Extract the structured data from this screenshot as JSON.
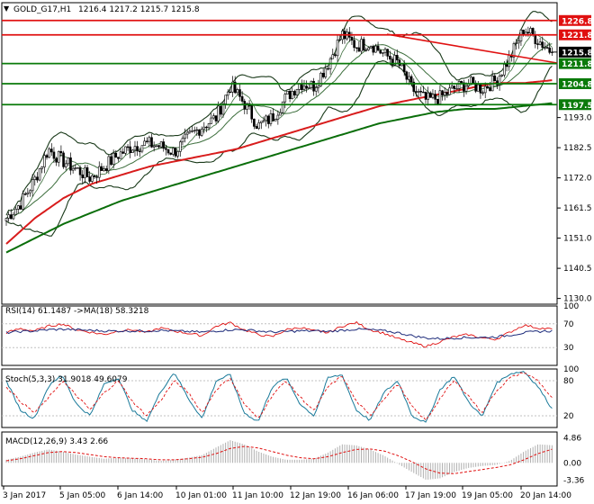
{
  "colors": {
    "background": "#ffffff",
    "frame": "#000000",
    "candle": "#000000",
    "bollinger": "#1a3a1a",
    "ma_fast": "#3c6e3c",
    "ma_red": "#d81c1c",
    "ma_green": "#0a6e0a",
    "resistance": "#e01010",
    "support": "#0a7a0a",
    "rsi_line": "#e01010",
    "rsi_ma": "#1c2a7a",
    "stoch_main": "#1a7a9a",
    "stoch_signal": "#e01010",
    "macd_hist": "#b0b0b0",
    "macd_signal": "#e01010",
    "tag_red": "#e01010",
    "tag_green": "#0a7a0a",
    "tag_black": "#000000"
  },
  "header": {
    "symbol_label": "GOLD_G17,H1",
    "ohlc_label": "1216.4 1217.2 1215.7 1215.8"
  },
  "chart_data": [
    {
      "type": "candlestick",
      "title": "GOLD_G17,H1",
      "ylim": [
        1128,
        1233
      ],
      "y_ticks": [
        1130.0,
        1140.5,
        1151.0,
        1161.5,
        1172.0,
        1182.5,
        1193.0
      ],
      "x_tick_labels": [
        "3 Jan 2017",
        "5 Jan 05:00",
        "6 Jan 14:00",
        "10 Jan 01:00",
        "11 Jan 10:00",
        "12 Jan 19:00",
        "16 Jan 06:00",
        "17 Jan 19:00",
        "19 Jan 05:00",
        "20 Jan 14:00"
      ],
      "close_path": [
        1158,
        1163,
        1171,
        1182,
        1178,
        1175,
        1172,
        1176,
        1180,
        1183,
        1184,
        1183,
        1181,
        1186,
        1190,
        1193,
        1204,
        1198,
        1190,
        1193,
        1200,
        1205,
        1204,
        1212,
        1222,
        1218,
        1219,
        1215,
        1212,
        1203,
        1199,
        1200,
        1203,
        1205,
        1203,
        1206,
        1214,
        1224,
        1220,
        1215.8
      ],
      "horizontal_levels": [
        {
          "price": 1226.8,
          "label": "1226.8",
          "kind": "resistance"
        },
        {
          "price": 1221.8,
          "label": "1221.8",
          "kind": "resistance"
        },
        {
          "price": 1211.8,
          "label": "1211.8",
          "kind": "support"
        },
        {
          "price": 1204.8,
          "label": "1204.8",
          "kind": "support"
        },
        {
          "price": 1197.5,
          "label": "1197.5",
          "kind": "support"
        }
      ],
      "current_price": {
        "value": 1215.8,
        "label": "1215.8"
      },
      "trendline": {
        "start": 1222.0,
        "end": 1212.0
      },
      "ma_slow": [
        1149,
        1158,
        1165,
        1170,
        1173,
        1176,
        1178,
        1180,
        1182,
        1185,
        1188,
        1191,
        1194,
        1197,
        1199,
        1201,
        1203,
        1205,
        1205,
        1206
      ],
      "ma_long": [
        1146,
        1151,
        1156,
        1160,
        1164,
        1167,
        1170,
        1173,
        1176,
        1179,
        1182,
        1185,
        1188,
        1191,
        1193,
        1195,
        1196,
        1196,
        1197,
        1198
      ]
    },
    {
      "type": "line",
      "title": "RSI(14) 61.1487 ->MA(18) 58.3218",
      "ylim": [
        0,
        100
      ],
      "y_ticks": [
        30,
        70,
        100
      ],
      "series": [
        {
          "name": "RSI(14)",
          "values": [
            55,
            62,
            58,
            66,
            70,
            60,
            56,
            52,
            58,
            60,
            55,
            63,
            58,
            54,
            50,
            66,
            72,
            60,
            52,
            48,
            60,
            64,
            58,
            55,
            66,
            72,
            60,
            54,
            45,
            38,
            32,
            40,
            48,
            52,
            46,
            44,
            56,
            68,
            63,
            61
          ]
        },
        {
          "name": "MA(18)",
          "values": [
            55,
            57,
            58,
            60,
            61,
            60,
            59,
            58,
            58,
            58,
            58,
            59,
            58,
            57,
            56,
            58,
            60,
            60,
            58,
            56,
            57,
            58,
            58,
            57,
            59,
            61,
            60,
            58,
            55,
            50,
            46,
            45,
            46,
            47,
            47,
            48,
            51,
            55,
            57,
            58
          ]
        }
      ]
    },
    {
      "type": "line",
      "title": "Stoch(5,3,3) 31.9018 49.6079",
      "ylim": [
        0,
        100
      ],
      "y_ticks": [
        20,
        80,
        100
      ],
      "series": [
        {
          "name": "Stoch main",
          "values": [
            80,
            30,
            15,
            70,
            90,
            40,
            20,
            75,
            85,
            30,
            10,
            60,
            95,
            50,
            15,
            80,
            90,
            25,
            10,
            70,
            85,
            40,
            20,
            85,
            90,
            30,
            12,
            60,
            80,
            20,
            8,
            65,
            88,
            45,
            18,
            75,
            92,
            96,
            70,
            32
          ]
        },
        {
          "name": "Stoch signal",
          "values": [
            70,
            45,
            25,
            50,
            80,
            55,
            30,
            60,
            80,
            45,
            20,
            45,
            80,
            60,
            25,
            65,
            85,
            40,
            15,
            55,
            80,
            52,
            28,
            70,
            88,
            45,
            20,
            50,
            75,
            35,
            12,
            50,
            80,
            55,
            25,
            62,
            85,
            94,
            80,
            50
          ]
        }
      ]
    },
    {
      "type": "bar",
      "title": "MACD(12,26,9) 3.43 2.66",
      "ylim": [
        -4.5,
        6.0
      ],
      "y_ticks": [
        -3.36,
        0.0,
        4.86
      ],
      "series": [
        {
          "name": "MACD",
          "values": [
            0.6,
            1.2,
            2.0,
            2.6,
            2.2,
            1.6,
            1.2,
            0.8,
            1.0,
            0.9,
            0.7,
            0.4,
            0.6,
            1.0,
            1.5,
            3.0,
            4.4,
            3.6,
            2.2,
            1.2,
            0.6,
            0.6,
            0.8,
            2.0,
            3.6,
            3.4,
            2.6,
            1.4,
            -0.2,
            -1.8,
            -3.3,
            -3.0,
            -1.8,
            -1.0,
            -0.6,
            -0.4,
            0.4,
            2.2,
            3.6,
            3.43
          ]
        },
        {
          "name": "Signal",
          "values": [
            0.4,
            0.8,
            1.4,
            2.0,
            2.2,
            2.0,
            1.6,
            1.2,
            1.0,
            0.9,
            0.8,
            0.6,
            0.6,
            0.8,
            1.1,
            1.8,
            2.8,
            3.2,
            2.9,
            2.2,
            1.5,
            1.0,
            0.8,
            1.2,
            2.0,
            2.6,
            2.7,
            2.3,
            1.4,
            0.2,
            -1.2,
            -2.0,
            -2.1,
            -1.7,
            -1.3,
            -0.9,
            -0.4,
            0.6,
            1.8,
            2.66
          ]
        }
      ]
    }
  ]
}
